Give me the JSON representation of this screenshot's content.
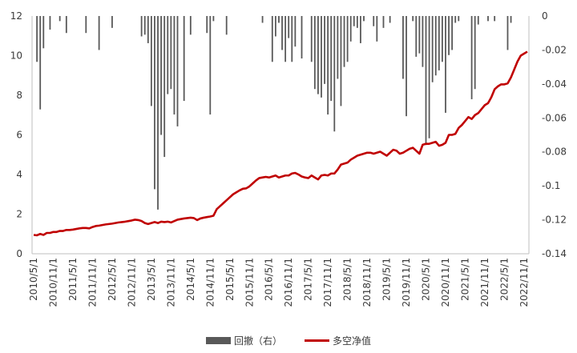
{
  "chart_data": {
    "type": "bar+line",
    "colors": {
      "drawdown": "#595959",
      "nav": "#c00000",
      "axis": "#bfbfbf",
      "text": "#3a3a3a"
    },
    "legend": {
      "position": "bottom",
      "entries": [
        "回撤（右）",
        "多空净值"
      ]
    },
    "grid": false,
    "left_axis": {
      "min": 0,
      "max": 12,
      "ticks": [
        "0",
        "2",
        "4",
        "6",
        "8",
        "10",
        "12"
      ]
    },
    "right_axis": {
      "min": -0.14,
      "max": 0,
      "ticks": [
        "0",
        "-0.02",
        "-0.04",
        "-0.06",
        "-0.08",
        "-0.1",
        "-0.12",
        "-0.14"
      ]
    },
    "x_axis": {
      "start": "2010-05",
      "end": "2022-12",
      "tick_labels": [
        "2010/5/1",
        "2010/11/1",
        "2011/5/1",
        "2011/11/1",
        "2012/5/1",
        "2012/11/1",
        "2013/5/1",
        "2013/11/1",
        "2014/5/1",
        "2014/11/1",
        "2015/5/1",
        "2015/11/1",
        "2016/5/1",
        "2016/11/1",
        "2017/5/1",
        "2017/11/1",
        "2018/5/1",
        "2018/11/1",
        "2019/5/1",
        "2019/11/1",
        "2020/5/1",
        "2020/11/1",
        "2021/5/1",
        "2021/11/1",
        "2022/5/1",
        "2022/11/1"
      ]
    },
    "series": [
      {
        "name": "回撤（右）",
        "type": "bar",
        "axis": "right",
        "x": [
          "2010-06",
          "2010-07",
          "2010-08",
          "2010-10",
          "2011-01",
          "2011-03",
          "2011-09",
          "2012-01",
          "2012-05",
          "2013-02",
          "2013-03",
          "2013-04",
          "2013-05",
          "2013-06",
          "2013-07",
          "2013-08",
          "2013-09",
          "2013-10",
          "2013-11",
          "2013-12",
          "2014-01",
          "2014-03",
          "2014-05",
          "2014-10",
          "2014-11",
          "2014-12",
          "2015-04",
          "2016-03",
          "2016-06",
          "2016-07",
          "2016-08",
          "2016-09",
          "2016-10",
          "2016-11",
          "2016-12",
          "2017-01",
          "2017-03",
          "2017-06",
          "2017-07",
          "2017-08",
          "2017-09",
          "2017-10",
          "2017-11",
          "2017-12",
          "2018-01",
          "2018-02",
          "2018-03",
          "2018-04",
          "2018-05",
          "2018-06",
          "2018-07",
          "2018-08",
          "2018-09",
          "2018-10",
          "2019-01",
          "2019-02",
          "2019-04",
          "2019-06",
          "2019-10",
          "2019-11",
          "2020-01",
          "2020-02",
          "2020-03",
          "2020-04",
          "2020-05",
          "2020-06",
          "2020-07",
          "2020-08",
          "2020-09",
          "2020-10",
          "2020-11",
          "2020-12",
          "2021-01",
          "2021-02",
          "2021-03",
          "2021-07",
          "2021-08",
          "2021-09",
          "2021-12",
          "2022-02",
          "2022-06",
          "2022-07"
        ],
        "values": [
          -0.027,
          -0.055,
          -0.019,
          -0.008,
          -0.003,
          -0.01,
          -0.01,
          -0.02,
          -0.007,
          -0.012,
          -0.011,
          -0.016,
          -0.053,
          -0.102,
          -0.114,
          -0.07,
          -0.083,
          -0.046,
          -0.043,
          -0.058,
          -0.065,
          -0.05,
          -0.011,
          -0.01,
          -0.058,
          -0.003,
          -0.011,
          -0.004,
          -0.027,
          -0.012,
          -0.004,
          -0.02,
          -0.027,
          -0.013,
          -0.027,
          -0.018,
          -0.025,
          -0.027,
          -0.043,
          -0.046,
          -0.048,
          -0.04,
          -0.058,
          -0.05,
          -0.068,
          -0.037,
          -0.053,
          -0.03,
          -0.027,
          -0.015,
          -0.006,
          -0.007,
          -0.016,
          -0.003,
          -0.006,
          -0.015,
          -0.007,
          -0.004,
          -0.037,
          -0.059,
          -0.003,
          -0.024,
          -0.022,
          -0.03,
          -0.076,
          -0.072,
          -0.039,
          -0.035,
          -0.032,
          -0.027,
          -0.057,
          -0.023,
          -0.02,
          -0.004,
          -0.003,
          -0.049,
          -0.043,
          -0.005,
          -0.003,
          -0.003,
          -0.02,
          -0.004
        ]
      },
      {
        "name": "多空净值",
        "type": "line",
        "axis": "left",
        "x": [
          "2010-05",
          "2010-06",
          "2010-07",
          "2010-08",
          "2010-09",
          "2010-10",
          "2010-11",
          "2010-12",
          "2011-01",
          "2011-02",
          "2011-03",
          "2011-04",
          "2011-05",
          "2011-06",
          "2011-07",
          "2011-08",
          "2011-09",
          "2011-10",
          "2011-11",
          "2011-12",
          "2012-01",
          "2012-02",
          "2012-03",
          "2012-04",
          "2012-05",
          "2012-06",
          "2012-07",
          "2012-08",
          "2012-09",
          "2012-10",
          "2012-11",
          "2012-12",
          "2013-01",
          "2013-02",
          "2013-03",
          "2013-04",
          "2013-05",
          "2013-06",
          "2013-07",
          "2013-08",
          "2013-09",
          "2013-10",
          "2013-11",
          "2013-12",
          "2014-01",
          "2014-02",
          "2014-03",
          "2014-04",
          "2014-05",
          "2014-06",
          "2014-07",
          "2014-08",
          "2014-09",
          "2014-10",
          "2014-11",
          "2014-12",
          "2015-01",
          "2015-02",
          "2015-03",
          "2015-04",
          "2015-05",
          "2015-06",
          "2015-07",
          "2015-08",
          "2015-09",
          "2015-10",
          "2015-11",
          "2015-12",
          "2016-01",
          "2016-02",
          "2016-03",
          "2016-04",
          "2016-05",
          "2016-06",
          "2016-07",
          "2016-08",
          "2016-09",
          "2016-10",
          "2016-11",
          "2016-12",
          "2017-01",
          "2017-02",
          "2017-03",
          "2017-04",
          "2017-05",
          "2017-06",
          "2017-07",
          "2017-08",
          "2017-09",
          "2017-10",
          "2017-11",
          "2017-12",
          "2018-01",
          "2018-02",
          "2018-03",
          "2018-04",
          "2018-05",
          "2018-06",
          "2018-07",
          "2018-08",
          "2018-09",
          "2018-10",
          "2018-11",
          "2018-12",
          "2019-01",
          "2019-02",
          "2019-03",
          "2019-04",
          "2019-05",
          "2019-06",
          "2019-07",
          "2019-08",
          "2019-09",
          "2019-10",
          "2019-11",
          "2019-12",
          "2020-01",
          "2020-02",
          "2020-03",
          "2020-04",
          "2020-05",
          "2020-06",
          "2020-07",
          "2020-08",
          "2020-09",
          "2020-10",
          "2020-11",
          "2020-12",
          "2021-01",
          "2021-02",
          "2021-03",
          "2021-04",
          "2021-05",
          "2021-06",
          "2021-07",
          "2021-08",
          "2021-09",
          "2021-10",
          "2021-11",
          "2021-12",
          "2022-01",
          "2022-02",
          "2022-03",
          "2022-04",
          "2022-05",
          "2022-06",
          "2022-07",
          "2022-08",
          "2022-09",
          "2022-10",
          "2022-11",
          "2022-12"
        ],
        "values": [
          0.95,
          0.93,
          1.0,
          0.95,
          1.05,
          1.05,
          1.1,
          1.1,
          1.15,
          1.15,
          1.2,
          1.2,
          1.22,
          1.25,
          1.28,
          1.3,
          1.3,
          1.28,
          1.35,
          1.4,
          1.42,
          1.45,
          1.48,
          1.5,
          1.52,
          1.55,
          1.58,
          1.6,
          1.62,
          1.65,
          1.68,
          1.72,
          1.7,
          1.65,
          1.55,
          1.5,
          1.55,
          1.6,
          1.55,
          1.62,
          1.6,
          1.62,
          1.58,
          1.65,
          1.72,
          1.75,
          1.78,
          1.8,
          1.82,
          1.8,
          1.7,
          1.78,
          1.82,
          1.85,
          1.88,
          1.92,
          2.25,
          2.4,
          2.55,
          2.7,
          2.85,
          3.0,
          3.1,
          3.2,
          3.28,
          3.3,
          3.4,
          3.55,
          3.7,
          3.82,
          3.85,
          3.88,
          3.85,
          3.9,
          3.95,
          3.85,
          3.9,
          3.95,
          3.95,
          4.05,
          4.08,
          4.0,
          3.9,
          3.85,
          3.82,
          3.95,
          3.85,
          3.75,
          3.95,
          3.98,
          3.95,
          4.05,
          4.05,
          4.25,
          4.5,
          4.55,
          4.6,
          4.75,
          4.85,
          4.95,
          5.0,
          5.05,
          5.1,
          5.1,
          5.05,
          5.1,
          5.15,
          5.05,
          4.95,
          5.1,
          5.25,
          5.2,
          5.05,
          5.1,
          5.2,
          5.3,
          5.35,
          5.2,
          5.05,
          5.5,
          5.55,
          5.55,
          5.6,
          5.65,
          5.45,
          5.5,
          5.6,
          6.0,
          6.0,
          6.05,
          6.35,
          6.5,
          6.7,
          6.9,
          6.8,
          7.0,
          7.1,
          7.3,
          7.5,
          7.6,
          7.9,
          8.3,
          8.45,
          8.55,
          8.55,
          8.6,
          8.9,
          9.3,
          9.7,
          10.0,
          10.1,
          10.2
        ]
      }
    ]
  }
}
